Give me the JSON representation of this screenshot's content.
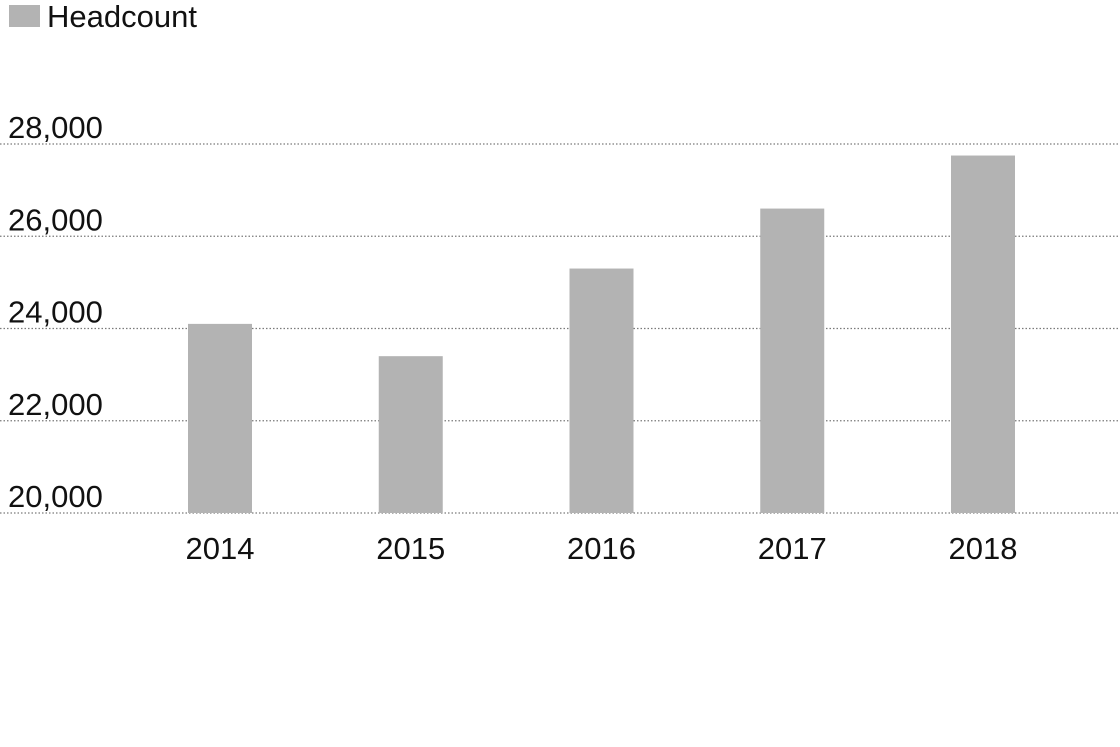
{
  "chart_data": {
    "type": "bar",
    "categories": [
      "2014",
      "2015",
      "2016",
      "2017",
      "2018"
    ],
    "series": [
      {
        "name": "Headcount",
        "values": [
          24100,
          23400,
          25300,
          26600,
          27750
        ],
        "color": "#b3b3b3"
      }
    ],
    "ylim": [
      20000,
      28000
    ],
    "yticks": [
      20000,
      22000,
      24000,
      26000,
      28000
    ],
    "ytick_labels": [
      "20,000",
      "22,000",
      "24,000",
      "26,000",
      "28,000"
    ],
    "grid": "horizontal dotted",
    "gridline_color": "#7a7a7a",
    "legend_position": "top-left",
    "xlabel": "",
    "ylabel": "",
    "title": ""
  }
}
